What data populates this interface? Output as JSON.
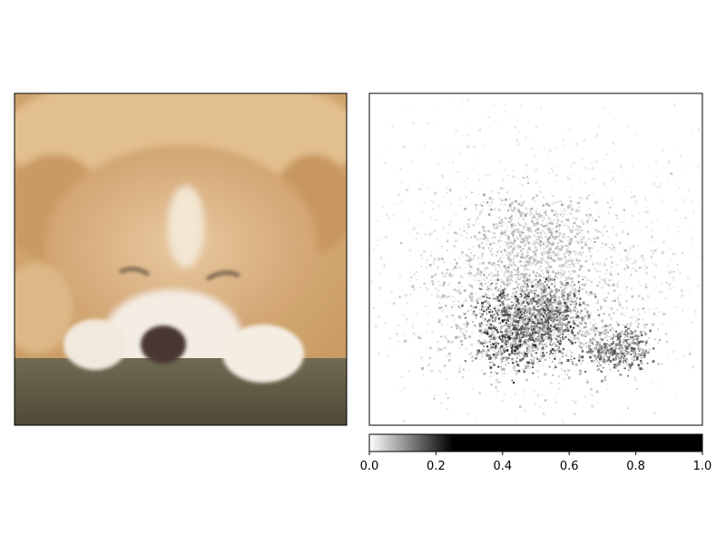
{
  "chart_data": [
    {
      "type": "image",
      "content": "photo of a sleeping light-brown dog lying on the ground with its head resting on its paws",
      "axes_visible": false
    },
    {
      "type": "heatmap",
      "colormap": "binary",
      "colormap_colors": [
        "#ffffff",
        "#000000"
      ],
      "vmin": 0.0,
      "vmax": 1.0,
      "axes_visible": false,
      "colorbar": {
        "orientation": "horizontal",
        "location": "bottom",
        "saturation_value": 0.25,
        "ticks": [
          0.0,
          0.2,
          0.4,
          0.6,
          0.8,
          1.0
        ],
        "tick_labels": [
          "0.0",
          "0.2",
          "0.4",
          "0.6",
          "0.8",
          "1.0"
        ]
      }
    }
  ]
}
